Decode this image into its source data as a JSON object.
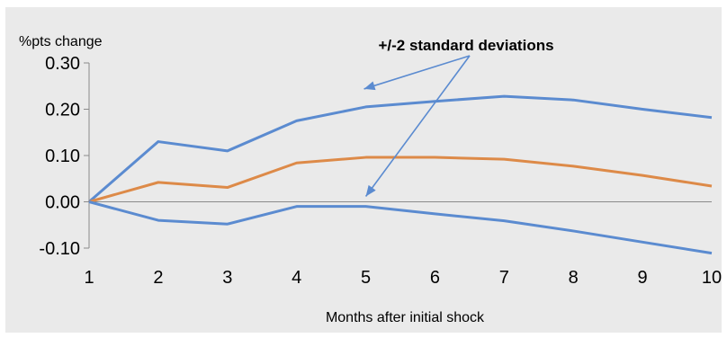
{
  "chart_data": {
    "type": "line",
    "title": "",
    "ylabel": "%pts change",
    "xlabel": "Months after initial shock",
    "x": [
      1,
      2,
      3,
      4,
      5,
      6,
      7,
      8,
      9,
      10
    ],
    "ylim": [
      -0.1,
      0.3
    ],
    "yticks": [
      "0.30",
      "0.20",
      "0.10",
      "0.00",
      "-0.10"
    ],
    "ytick_values": [
      0.3,
      0.2,
      0.1,
      0.0,
      -0.1
    ],
    "xticks": [
      "1",
      "2",
      "3",
      "4",
      "5",
      "6",
      "7",
      "8",
      "9",
      "10"
    ],
    "annotation": "+/-2 standard deviations",
    "grid": false,
    "series": [
      {
        "role": "upper",
        "color": "#5b8bd0",
        "values": [
          0.0,
          0.13,
          0.11,
          0.175,
          0.205,
          0.217,
          0.228,
          0.22,
          0.2,
          0.182
        ]
      },
      {
        "role": "central",
        "color": "#dd8a48",
        "values": [
          0.0,
          0.042,
          0.031,
          0.084,
          0.096,
          0.096,
          0.092,
          0.077,
          0.057,
          0.034
        ]
      },
      {
        "role": "lower",
        "color": "#5b8bd0",
        "values": [
          0.0,
          -0.04,
          -0.048,
          -0.01,
          -0.01,
          -0.026,
          -0.041,
          -0.063,
          -0.087,
          -0.111
        ]
      }
    ]
  }
}
